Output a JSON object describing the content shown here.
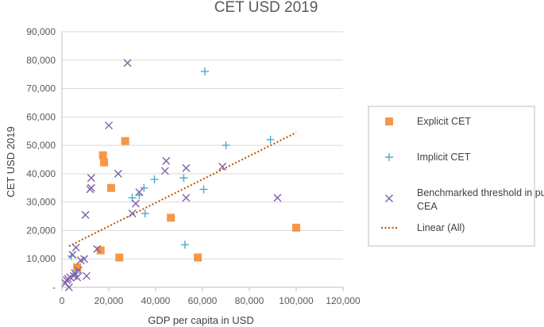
{
  "chart_data": {
    "type": "scatter",
    "title": "CET USD 2019",
    "xlabel": "GDP per capita in USD",
    "ylabel": "CET USD 2019",
    "xlim": [
      0,
      120000
    ],
    "ylim": [
      0,
      90000
    ],
    "x_ticks": [
      0,
      20000,
      40000,
      60000,
      80000,
      100000,
      120000
    ],
    "x_tick_labels": [
      "0",
      "20,000",
      "40,000",
      "60,000",
      "80,000",
      "100,000",
      "120,000"
    ],
    "y_ticks": [
      0,
      10000,
      20000,
      30000,
      40000,
      50000,
      60000,
      70000,
      80000,
      90000
    ],
    "y_tick_labels": [
      "-",
      "10,000",
      "20,000",
      "30,000",
      "40,000",
      "50,000",
      "60,000",
      "70,000",
      "80,000",
      "90,000"
    ],
    "grid": "horizontal",
    "legend_position": "right",
    "colors": {
      "explicit": "#F79646",
      "implicit": "#4BACC6",
      "benchmarked": "#7F5FA8",
      "trend": "#C0600A",
      "grid": "#D9D9D9",
      "axis": "#BFBFBF"
    },
    "series": [
      {
        "name": "Explicit CET",
        "marker": "square",
        "points": [
          [
            6500,
            7000
          ],
          [
            16500,
            13000
          ],
          [
            17500,
            46500
          ],
          [
            18000,
            44000
          ],
          [
            21000,
            35000
          ],
          [
            24500,
            10500
          ],
          [
            27000,
            51500
          ],
          [
            46500,
            24500
          ],
          [
            58000,
            10500
          ],
          [
            100000,
            21000
          ]
        ]
      },
      {
        "name": "Implicit CET",
        "marker": "plus",
        "points": [
          [
            4000,
            11000
          ],
          [
            6000,
            5000
          ],
          [
            30000,
            31500
          ],
          [
            33000,
            32500
          ],
          [
            35000,
            35000
          ],
          [
            35500,
            26000
          ],
          [
            39500,
            38000
          ],
          [
            52000,
            38500
          ],
          [
            52500,
            15000
          ],
          [
            60500,
            34500
          ],
          [
            61000,
            76000
          ],
          [
            70000,
            50000
          ],
          [
            89000,
            52000
          ]
        ]
      },
      {
        "name": "Benchmarked threshold in published CEA",
        "marker": "x",
        "points": [
          [
            1500,
            1500
          ],
          [
            2000,
            2500
          ],
          [
            2500,
            3000
          ],
          [
            3000,
            0
          ],
          [
            3500,
            3500
          ],
          [
            4500,
            11500
          ],
          [
            5000,
            4000
          ],
          [
            5500,
            5000
          ],
          [
            6000,
            14000
          ],
          [
            6500,
            3500
          ],
          [
            7000,
            6000
          ],
          [
            8000,
            9500
          ],
          [
            9500,
            10000
          ],
          [
            10500,
            4000
          ],
          [
            10000,
            25500
          ],
          [
            12000,
            34500
          ],
          [
            12500,
            35000
          ],
          [
            12500,
            38500
          ],
          [
            15000,
            13500
          ],
          [
            20000,
            57000
          ],
          [
            24000,
            40000
          ],
          [
            28000,
            79000
          ],
          [
            30000,
            26000
          ],
          [
            31500,
            29500
          ],
          [
            33000,
            33500
          ],
          [
            44000,
            41000
          ],
          [
            44500,
            44500
          ],
          [
            53000,
            31500
          ],
          [
            53000,
            42000
          ],
          [
            68500,
            42500
          ],
          [
            92000,
            31500
          ]
        ]
      },
      {
        "name": "Linear (All)",
        "type": "trendline",
        "style": "dotted",
        "points": [
          [
            3000,
            14500
          ],
          [
            100000,
            54500
          ]
        ]
      }
    ]
  }
}
